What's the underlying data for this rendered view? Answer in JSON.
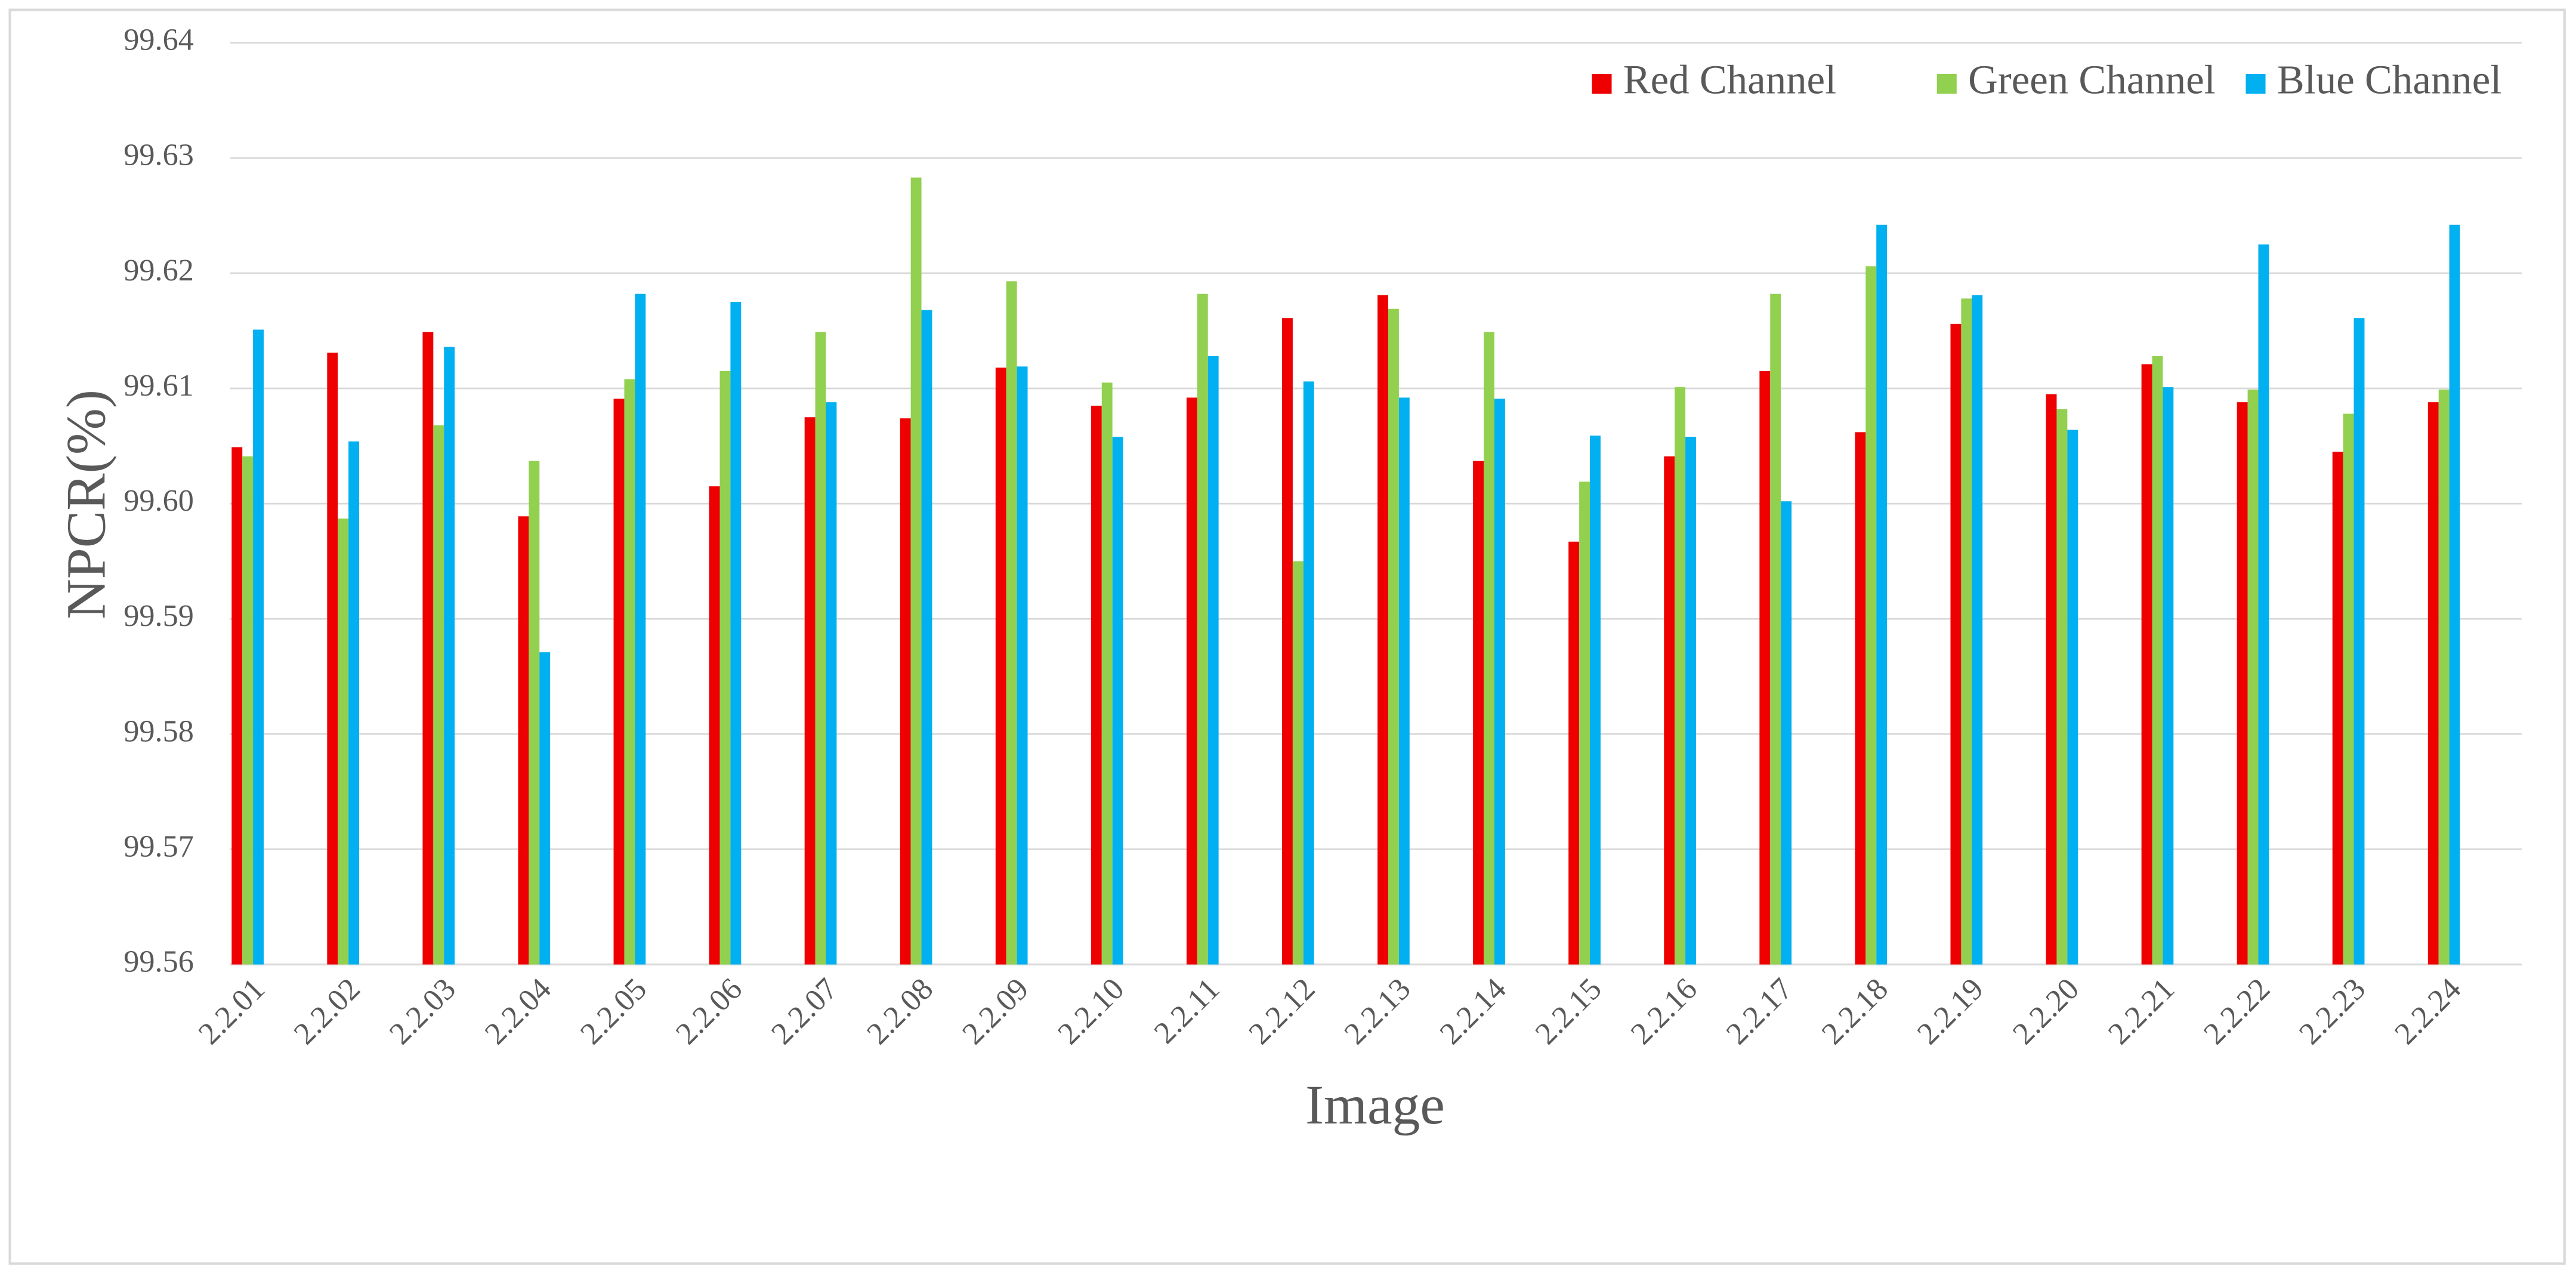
{
  "chart_data": {
    "type": "bar",
    "x_label": "Image",
    "y_label": "NPCR(%)",
    "categories": [
      "2.2.01",
      "2.2.02",
      "2.2.03",
      "2.2.04",
      "2.2.05",
      "2.2.06",
      "2.2.07",
      "2.2.08",
      "2.2.09",
      "2.2.10",
      "2.2.11",
      "2.2.12",
      "2.2.13",
      "2.2.14",
      "2.2.15",
      "2.2.16",
      "2.2.17",
      "2.2.18",
      "2.2.19",
      "2.2.20",
      "2.2.21",
      "2.2.22",
      "2.2.23",
      "2.2.24"
    ],
    "series": [
      {
        "name": "Red Channel",
        "color": "#ee0000",
        "values": [
          99.6049,
          99.6131,
          99.6149,
          99.5989,
          99.6091,
          99.6015,
          99.6075,
          99.6074,
          99.6118,
          99.6085,
          99.6092,
          99.6161,
          99.6181,
          99.6037,
          99.5967,
          99.6041,
          99.6115,
          99.6062,
          99.6156,
          99.6095,
          99.6121,
          99.6088,
          99.6045,
          99.6088
        ]
      },
      {
        "name": "Green Channel",
        "color": "#92d050",
        "values": [
          99.6041,
          99.5987,
          99.6068,
          99.6037,
          99.6108,
          99.6115,
          99.6149,
          99.6283,
          99.6193,
          99.6105,
          99.6182,
          99.595,
          99.6169,
          99.6149,
          99.6019,
          99.6101,
          99.6182,
          99.6206,
          99.6178,
          99.6082,
          99.6128,
          99.6099,
          99.6078,
          99.6099
        ]
      },
      {
        "name": "Blue Channel",
        "color": "#00b0f0",
        "values": [
          99.6151,
          99.6054,
          99.6136,
          99.5871,
          99.6182,
          99.6175,
          99.6088,
          99.6168,
          99.6119,
          99.6058,
          99.6128,
          99.6106,
          99.6092,
          99.6091,
          99.6059,
          99.6058,
          99.6002,
          99.6242,
          99.6181,
          99.6064,
          99.6101,
          99.6225,
          99.6161,
          99.6242
        ]
      }
    ],
    "ylim": [
      99.56,
      99.64
    ],
    "yticks": [
      99.56,
      99.57,
      99.58,
      99.59,
      {
        "value": 99.6,
        "label": "99.60"
      },
      99.61,
      99.62,
      99.63,
      99.64
    ],
    "grid": true,
    "legend": "top-right"
  }
}
